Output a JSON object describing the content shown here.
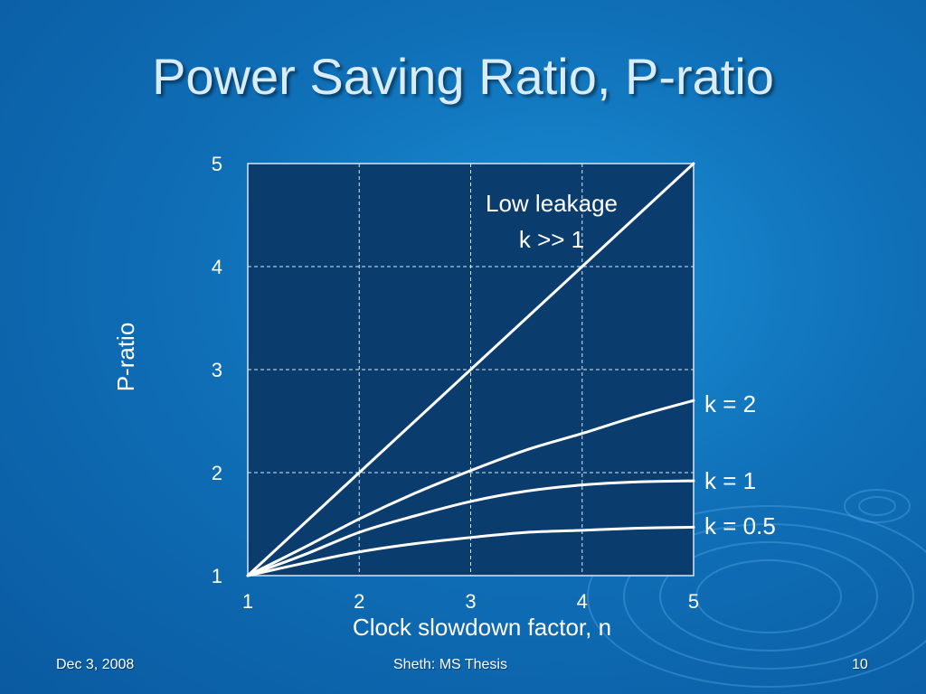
{
  "slide": {
    "title": "Power Saving Ratio, P-ratio",
    "footer_left": "Dec 3, 2008",
    "footer_center": "Sheth: MS Thesis",
    "footer_right": "10"
  },
  "colors": {
    "plot_background": "#0a3d6e",
    "line": "#ffffff",
    "grid": "#d8e6f3"
  },
  "chart_data": {
    "type": "line",
    "title": "",
    "xlabel": "Clock slowdown factor, n",
    "ylabel": "P-ratio",
    "xlim": [
      1,
      5
    ],
    "ylim": [
      1,
      5
    ],
    "xticks": [
      1,
      2,
      3,
      4,
      5
    ],
    "yticks": [
      1,
      2,
      3,
      4,
      5
    ],
    "grid": true,
    "x": [
      1,
      1.5,
      2,
      2.5,
      3,
      3.5,
      4,
      4.5,
      5
    ],
    "series": [
      {
        "name": "Low leakage k >> 1",
        "values": [
          1,
          1.5,
          2,
          2.5,
          3,
          3.5,
          4,
          4.5,
          5
        ]
      },
      {
        "name": "k = 2",
        "values": [
          1,
          1.27,
          1.55,
          1.8,
          2.02,
          2.22,
          2.38,
          2.55,
          2.7
        ]
      },
      {
        "name": "k = 1",
        "values": [
          1,
          1.2,
          1.42,
          1.58,
          1.72,
          1.82,
          1.88,
          1.91,
          1.92
        ]
      },
      {
        "name": "k = 0.5",
        "values": [
          1,
          1.12,
          1.23,
          1.31,
          1.37,
          1.42,
          1.44,
          1.46,
          1.47
        ]
      }
    ],
    "annotations": {
      "low_leakage_line1": "Low leakage",
      "low_leakage_line2": "k >> 1",
      "k2": "k = 2",
      "k1": "k = 1",
      "k05": "k = 0.5"
    }
  }
}
